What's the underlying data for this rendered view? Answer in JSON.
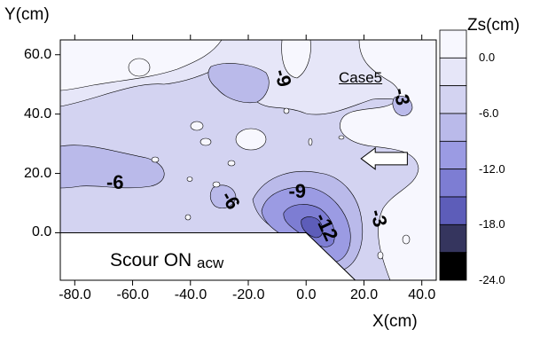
{
  "chart_data": {
    "type": "contour",
    "ylabel": "Y(cm)",
    "xlabel": "X(cm)",
    "colorbar_title": "Zs(cm)",
    "case_label": "Case5",
    "region_label": "Scour ON ",
    "region_label_sub": "acw",
    "xlim": [
      -85,
      45
    ],
    "ylim": [
      -16,
      65
    ],
    "x_ticks": [
      {
        "value": -80,
        "label": "-80.0"
      },
      {
        "value": -60,
        "label": "-60.0"
      },
      {
        "value": -40,
        "label": "-40.0"
      },
      {
        "value": -20,
        "label": "-20.0"
      },
      {
        "value": 0,
        "label": "0.0"
      },
      {
        "value": 20,
        "label": "20.0"
      },
      {
        "value": 40,
        "label": "40.0"
      }
    ],
    "y_ticks": [
      {
        "value": 0,
        "label": "0.0"
      },
      {
        "value": 20,
        "label": "20.0"
      },
      {
        "value": 40,
        "label": "40.0"
      },
      {
        "value": 60,
        "label": "60.0"
      }
    ],
    "colorbar": {
      "levels": [
        3,
        0,
        -3,
        -6,
        -9,
        -12,
        -15,
        -18,
        -21,
        -24
      ],
      "tick_labels": [
        {
          "value": 0,
          "label": "0.0"
        },
        {
          "value": -6,
          "label": "-6.0"
        },
        {
          "value": -12,
          "label": "-12.0"
        },
        {
          "value": -18,
          "label": "-18.0"
        },
        {
          "value": -24,
          "label": "-24.0"
        }
      ],
      "colors": [
        "#f7f7fe",
        "#e6e6f8",
        "#d3d3f1",
        "#babaea",
        "#9b9be3",
        "#7d7dd3",
        "#5d5db9",
        "#35355e",
        "#000000"
      ]
    },
    "structure": {
      "description_free_polygon_xy": [
        [
          -85,
          0
        ],
        [
          0,
          0
        ],
        [
          17,
          -16
        ],
        [
          -85,
          -16
        ]
      ],
      "fill": "#ffffff"
    },
    "contour_labels": [
      {
        "text": "-6",
        "x": -66,
        "y": 17,
        "angle": 0
      },
      {
        "text": "-6",
        "x": -26,
        "y": 11,
        "angle": 60
      },
      {
        "text": "-9",
        "x": -3,
        "y": 14,
        "angle": 0
      },
      {
        "text": "-12",
        "x": 7,
        "y": 2,
        "angle": 65
      },
      {
        "text": "-3",
        "x": 25,
        "y": 5,
        "angle": 75
      },
      {
        "text": "-9",
        "x": -8,
        "y": 52,
        "angle": 75
      },
      {
        "text": "-3",
        "x": 33,
        "y": 46,
        "angle": 80
      }
    ],
    "flow_arrow": {
      "x_tail": 35,
      "x_head": 19,
      "y": 25
    }
  }
}
